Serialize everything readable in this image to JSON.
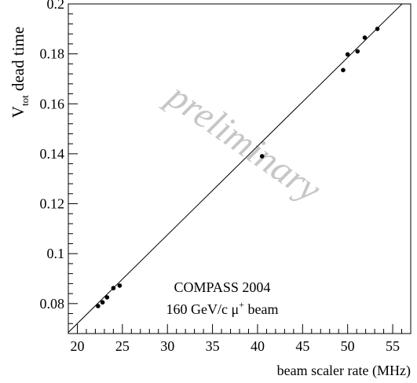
{
  "chart_data": {
    "type": "scatter",
    "xlabel": "beam scaler rate (MHz)",
    "ylabel_main": "V",
    "ylabel_sub": "tot",
    "ylabel_rest": " dead time",
    "xlim": [
      19,
      57
    ],
    "ylim": [
      0.068,
      0.2
    ],
    "x_ticks": [
      20,
      25,
      30,
      35,
      40,
      45,
      50,
      55
    ],
    "y_ticks": [
      0.08,
      0.1,
      0.12,
      0.14,
      0.16,
      0.18,
      0.2
    ],
    "y_tick_labels": [
      "0.08",
      "0.1",
      "0.12",
      "0.14",
      "0.16",
      "0.18",
      "0.2"
    ],
    "grid": false,
    "points": [
      {
        "x": 22.3,
        "y": 0.079
      },
      {
        "x": 22.8,
        "y": 0.0805
      },
      {
        "x": 23.3,
        "y": 0.0825
      },
      {
        "x": 24.0,
        "y": 0.0862
      },
      {
        "x": 24.7,
        "y": 0.0872
      },
      {
        "x": 40.5,
        "y": 0.139
      },
      {
        "x": 49.5,
        "y": 0.1735
      },
      {
        "x": 50.0,
        "y": 0.1798
      },
      {
        "x": 51.1,
        "y": 0.181
      },
      {
        "x": 51.9,
        "y": 0.1865
      },
      {
        "x": 53.3,
        "y": 0.19
      }
    ],
    "fit_line": {
      "slope": 0.003551,
      "intercept": 0.001
    },
    "annotation_line1": "COMPASS 2004",
    "annotation_line2_prefix": "160 GeV/c  ",
    "annotation_mu": "μ",
    "annotation_sup": "+",
    "annotation_line2_suffix": " beam",
    "watermark": "preliminary"
  }
}
